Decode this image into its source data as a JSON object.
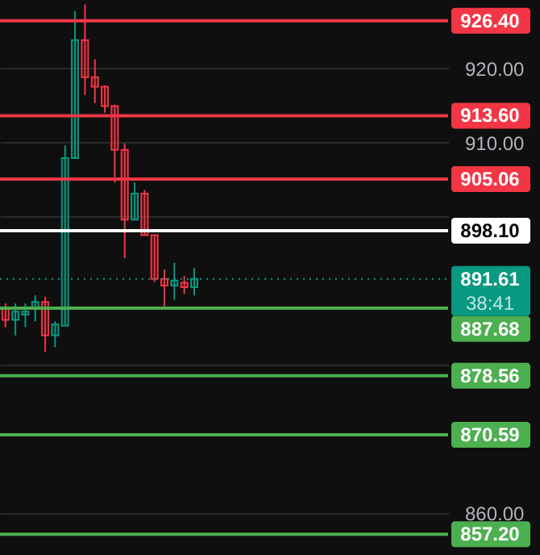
{
  "chart_data": {
    "type": "candlestick",
    "categories": [
      null,
      null,
      null,
      null,
      null,
      null,
      null,
      null,
      null,
      null,
      null,
      null,
      null,
      null,
      null,
      null,
      null,
      null,
      null,
      null,
      null,
      null,
      null,
      null,
      null,
      null,
      null,
      null,
      null,
      null,
      null,
      null,
      null,
      null,
      null,
      null,
      null,
      null,
      null,
      null,
      null,
      null,
      null,
      null,
      null
    ],
    "ohlc": [
      [
        887.7,
        888.3,
        885.1,
        886.1
      ],
      [
        886.1,
        888.3,
        884.0,
        887.2
      ],
      [
        886.8,
        888.3,
        885.1,
        887.2
      ],
      [
        887.7,
        889.4,
        885.9,
        888.5
      ],
      [
        888.5,
        889.2,
        881.8,
        884.0
      ],
      [
        884.0,
        885.9,
        882.4,
        885.5
      ],
      [
        885.3,
        909.6,
        885.3,
        907.9
      ],
      [
        907.9,
        927.7,
        907.9,
        923.8
      ],
      [
        923.8,
        928.6,
        916.4,
        918.8
      ],
      [
        918.8,
        921.2,
        915.3,
        917.5
      ],
      [
        917.5,
        917.7,
        914.0,
        914.9
      ],
      [
        914.9,
        915.1,
        904.6,
        909.0
      ],
      [
        909.0,
        909.9,
        894.4,
        899.6
      ],
      [
        899.6,
        904.6,
        899.6,
        903.1
      ],
      [
        903.1,
        903.6,
        897.5,
        897.5
      ],
      [
        897.5,
        897.5,
        891.2,
        891.6
      ],
      [
        891.6,
        892.9,
        887.7,
        890.7
      ],
      [
        890.7,
        893.8,
        888.8,
        891.4
      ],
      [
        891.1,
        892.0,
        889.6,
        890.5
      ],
      [
        890.5,
        893.1,
        889.4,
        891.6
      ],
      null,
      null,
      null,
      null,
      null,
      null,
      null,
      null,
      null,
      null,
      null,
      null,
      null,
      null,
      null,
      null,
      null,
      null,
      null,
      null,
      null,
      null,
      null,
      null,
      null
    ],
    "colors": [
      "#f23645",
      "#089981",
      "#089981",
      "#089981",
      "#f23645",
      "#089981",
      "#089981",
      "#089981",
      "#f23645",
      "#f23645",
      "#f23645",
      "#f23645",
      "#f23645",
      "#089981",
      "#f23645",
      "#f23645",
      "#f23645",
      "#089981",
      "#f23645",
      "#089981",
      null,
      null,
      null,
      null,
      null,
      null,
      null,
      null,
      null,
      null,
      null,
      null,
      null,
      null,
      null,
      null,
      null,
      null,
      null,
      null,
      null,
      null,
      null,
      null,
      null
    ],
    "ylim": [
      854.4,
      929.2
    ],
    "yticks": [
      {
        "value": 860,
        "label": "860.00"
      },
      {
        "value": 880,
        "label": null
      },
      {
        "value": 900,
        "label": null
      },
      {
        "value": 910,
        "label": "910.00"
      },
      {
        "value": 920,
        "label": "920.00"
      }
    ],
    "grid": "y",
    "ref_lines": [
      {
        "axis": "y",
        "value": 926.4,
        "label": "926.40",
        "color": "#f23645",
        "line_style": "solid"
      },
      {
        "axis": "y",
        "value": 913.6,
        "label": "913.60",
        "color": "#f23645",
        "line_style": "solid"
      },
      {
        "axis": "y",
        "value": 905.06,
        "label": "905.06",
        "color": "#f23645",
        "line_style": "solid"
      },
      {
        "axis": "y",
        "value": 898.1,
        "label": "898.10",
        "color": "#ffffff",
        "line_style": "solid"
      },
      {
        "axis": "y",
        "value": 891.61,
        "label": "891.61",
        "color": "#089981",
        "line_style": "dotted"
      },
      {
        "axis": "y",
        "value": 887.68,
        "label": "887.68",
        "color": "#4caf50",
        "line_style": "solid"
      },
      {
        "axis": "y",
        "value": 878.56,
        "label": "878.56",
        "color": "#4caf50",
        "line_style": "solid"
      },
      {
        "axis": "y",
        "value": 870.59,
        "label": "870.59",
        "color": "#4caf50",
        "line_style": "solid"
      },
      {
        "axis": "y",
        "value": 857.2,
        "label": "857.20",
        "color": "#4caf50",
        "line_style": "solid"
      }
    ],
    "annotations": [
      "38:41"
    ]
  }
}
